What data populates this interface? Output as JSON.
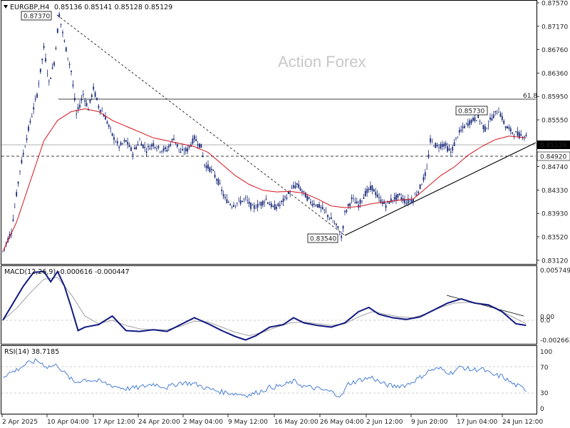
{
  "header": {
    "symbol": "EURGBP,H4",
    "ohlc": "0.85136 0.85141 0.85128 0.85129"
  },
  "watermark": "Action Forex",
  "price_axis": {
    "ticks": [
      "0.87570",
      "0.87170",
      "0.86760",
      "0.86360",
      "0.85950",
      "0.85550",
      "0.85140",
      "0.84740",
      "0.84330",
      "0.83930",
      "0.83520",
      "0.83120"
    ],
    "current_label": "0.85129",
    "level_label": "0.84920",
    "fib_label": "61.8"
  },
  "annotations": {
    "high": "0.87370",
    "low": "0.83540",
    "swing_high": "0.85730"
  },
  "macd_panel": {
    "label": "MACD(12,26,9) -0.000616 -0.000447",
    "ticks": [
      "0.005749",
      "0.00",
      "0.0",
      "-0.002663"
    ]
  },
  "rsi_panel": {
    "label": "RSI(14) 38.7185",
    "ticks": [
      "100",
      "70",
      "30",
      "0"
    ]
  },
  "time_axis": {
    "labels": [
      "2 Apr 2025",
      "10 Apr 04:00",
      "17 Apr 12:00",
      "24 Apr 20:00",
      "2 May 04:00",
      "9 May 12:00",
      "16 May 20:00",
      "26 May 04:00",
      "2 Jun 12:00",
      "9 Jun 20:00",
      "17 Jun 04:00",
      "24 Jun 12:00"
    ]
  },
  "colors": {
    "candle": "#1a2a7a",
    "ma": "#d4141e",
    "macd": "#101880",
    "signal": "#a0a0a0",
    "rsi": "#4a7fd4"
  },
  "chart_data": {
    "type": "line",
    "title": "EURGBP,H4",
    "ylim": [
      0.8312,
      0.8757
    ],
    "price_anchors": [
      [
        0,
        0.833
      ],
      [
        5,
        0.8365
      ],
      [
        10,
        0.847
      ],
      [
        15,
        0.854
      ],
      [
        20,
        0.86
      ],
      [
        24,
        0.868
      ],
      [
        27,
        0.862
      ],
      [
        30,
        0.8655
      ],
      [
        33,
        0.8737
      ],
      [
        36,
        0.869
      ],
      [
        40,
        0.864
      ],
      [
        43,
        0.8565
      ],
      [
        47,
        0.86
      ],
      [
        50,
        0.8575
      ],
      [
        53,
        0.861
      ],
      [
        56,
        0.858
      ],
      [
        60,
        0.856
      ],
      [
        64,
        0.853
      ],
      [
        68,
        0.851
      ],
      [
        72,
        0.852
      ],
      [
        76,
        0.85
      ],
      [
        80,
        0.852
      ],
      [
        84,
        0.8505
      ],
      [
        88,
        0.8515
      ],
      [
        92,
        0.8505
      ],
      [
        96,
        0.8505
      ],
      [
        100,
        0.8525
      ],
      [
        104,
        0.85
      ],
      [
        108,
        0.8505
      ],
      [
        112,
        0.8525
      ],
      [
        116,
        0.851
      ],
      [
        118,
        0.848
      ],
      [
        122,
        0.847
      ],
      [
        126,
        0.845
      ],
      [
        130,
        0.842
      ],
      [
        134,
        0.841
      ],
      [
        138,
        0.8415
      ],
      [
        142,
        0.842
      ],
      [
        146,
        0.8405
      ],
      [
        150,
        0.841
      ],
      [
        154,
        0.842
      ],
      [
        158,
        0.8405
      ],
      [
        162,
        0.841
      ],
      [
        166,
        0.8425
      ],
      [
        170,
        0.844
      ],
      [
        172,
        0.8445
      ],
      [
        176,
        0.843
      ],
      [
        180,
        0.8415
      ],
      [
        184,
        0.841
      ],
      [
        188,
        0.84
      ],
      [
        192,
        0.8385
      ],
      [
        196,
        0.837
      ],
      [
        198,
        0.8354
      ],
      [
        200,
        0.8395
      ],
      [
        204,
        0.842
      ],
      [
        208,
        0.841
      ],
      [
        212,
        0.843
      ],
      [
        216,
        0.844
      ],
      [
        220,
        0.842
      ],
      [
        224,
        0.841
      ],
      [
        228,
        0.842
      ],
      [
        232,
        0.8425
      ],
      [
        236,
        0.8415
      ],
      [
        240,
        0.842
      ],
      [
        244,
        0.844
      ],
      [
        248,
        0.847
      ],
      [
        250,
        0.852
      ],
      [
        254,
        0.851
      ],
      [
        258,
        0.8515
      ],
      [
        262,
        0.85
      ],
      [
        266,
        0.853
      ],
      [
        270,
        0.8545
      ],
      [
        274,
        0.8555
      ],
      [
        278,
        0.856
      ],
      [
        282,
        0.854
      ],
      [
        286,
        0.856
      ],
      [
        290,
        0.8573
      ],
      [
        294,
        0.8545
      ],
      [
        298,
        0.8535
      ],
      [
        302,
        0.853
      ],
      [
        306,
        0.8529
      ]
    ],
    "ma_anchors": [
      [
        0,
        0.833
      ],
      [
        8,
        0.838
      ],
      [
        16,
        0.845
      ],
      [
        24,
        0.852
      ],
      [
        32,
        0.8555
      ],
      [
        40,
        0.857
      ],
      [
        48,
        0.8575
      ],
      [
        56,
        0.857
      ],
      [
        64,
        0.8555
      ],
      [
        72,
        0.8545
      ],
      [
        80,
        0.8535
      ],
      [
        88,
        0.8525
      ],
      [
        96,
        0.852
      ],
      [
        104,
        0.8515
      ],
      [
        112,
        0.851
      ],
      [
        120,
        0.85
      ],
      [
        128,
        0.848
      ],
      [
        136,
        0.846
      ],
      [
        144,
        0.8445
      ],
      [
        152,
        0.8435
      ],
      [
        160,
        0.8432
      ],
      [
        168,
        0.8433
      ],
      [
        176,
        0.843
      ],
      [
        184,
        0.842
      ],
      [
        192,
        0.8408
      ],
      [
        200,
        0.8405
      ],
      [
        208,
        0.8407
      ],
      [
        216,
        0.8412
      ],
      [
        224,
        0.8415
      ],
      [
        232,
        0.8418
      ],
      [
        240,
        0.842
      ],
      [
        248,
        0.844
      ],
      [
        256,
        0.846
      ],
      [
        264,
        0.8475
      ],
      [
        272,
        0.8495
      ],
      [
        280,
        0.851
      ],
      [
        288,
        0.8522
      ],
      [
        296,
        0.8528
      ],
      [
        306,
        0.8525
      ]
    ],
    "macd_anchors": [
      [
        0,
        0.0
      ],
      [
        6,
        0.002
      ],
      [
        12,
        0.004
      ],
      [
        18,
        0.0056
      ],
      [
        24,
        0.0057
      ],
      [
        28,
        0.0045
      ],
      [
        32,
        0.0057
      ],
      [
        36,
        0.004
      ],
      [
        40,
        0.0015
      ],
      [
        44,
        -0.0012
      ],
      [
        48,
        -0.0008
      ],
      [
        56,
        -0.0005
      ],
      [
        64,
        0.0005
      ],
      [
        72,
        -0.0012
      ],
      [
        80,
        -0.0013
      ],
      [
        88,
        -0.0011
      ],
      [
        96,
        -0.0013
      ],
      [
        104,
        -0.0005
      ],
      [
        112,
        0.0003
      ],
      [
        120,
        -0.0004
      ],
      [
        128,
        -0.0012
      ],
      [
        136,
        -0.0019
      ],
      [
        142,
        -0.0023
      ],
      [
        148,
        -0.0018
      ],
      [
        156,
        -0.0008
      ],
      [
        164,
        -0.0005
      ],
      [
        170,
        0.0003
      ],
      [
        176,
        -0.0003
      ],
      [
        184,
        -0.0006
      ],
      [
        192,
        -0.0008
      ],
      [
        200,
        -0.0003
      ],
      [
        208,
        0.001
      ],
      [
        214,
        0.0015
      ],
      [
        220,
        0.0007
      ],
      [
        228,
        0.0003
      ],
      [
        236,
        0.0001
      ],
      [
        244,
        0.0004
      ],
      [
        252,
        0.0012
      ],
      [
        260,
        0.002
      ],
      [
        268,
        0.0025
      ],
      [
        276,
        0.002
      ],
      [
        284,
        0.0018
      ],
      [
        292,
        0.001
      ],
      [
        300,
        -0.0004
      ],
      [
        306,
        -0.0006
      ]
    ],
    "signal_anchors": [
      [
        0,
        0.0
      ],
      [
        8,
        0.0014
      ],
      [
        16,
        0.0032
      ],
      [
        24,
        0.0048
      ],
      [
        32,
        0.005
      ],
      [
        40,
        0.003
      ],
      [
        48,
        0.0005
      ],
      [
        56,
        -0.0004
      ],
      [
        64,
        0.0
      ],
      [
        72,
        -0.0006
      ],
      [
        80,
        -0.001
      ],
      [
        88,
        -0.0011
      ],
      [
        96,
        -0.0011
      ],
      [
        104,
        -0.0007
      ],
      [
        112,
        -0.0001
      ],
      [
        120,
        -0.0002
      ],
      [
        128,
        -0.0008
      ],
      [
        136,
        -0.0014
      ],
      [
        144,
        -0.0018
      ],
      [
        152,
        -0.0014
      ],
      [
        160,
        -0.0008
      ],
      [
        168,
        -0.0003
      ],
      [
        176,
        -0.0002
      ],
      [
        184,
        -0.0004
      ],
      [
        192,
        -0.0006
      ],
      [
        200,
        -0.0004
      ],
      [
        208,
        0.0004
      ],
      [
        216,
        0.001
      ],
      [
        224,
        0.0007
      ],
      [
        232,
        0.0004
      ],
      [
        240,
        0.0003
      ],
      [
        248,
        0.0008
      ],
      [
        256,
        0.0015
      ],
      [
        264,
        0.002
      ],
      [
        272,
        0.0021
      ],
      [
        280,
        0.0019
      ],
      [
        288,
        0.0015
      ],
      [
        296,
        0.0006
      ],
      [
        306,
        -0.0004
      ]
    ],
    "rsi_anchors": [
      [
        0,
        60
      ],
      [
        8,
        70
      ],
      [
        14,
        80
      ],
      [
        20,
        85
      ],
      [
        26,
        75
      ],
      [
        32,
        78
      ],
      [
        36,
        65
      ],
      [
        42,
        50
      ],
      [
        48,
        55
      ],
      [
        56,
        52
      ],
      [
        64,
        45
      ],
      [
        72,
        40
      ],
      [
        80,
        42
      ],
      [
        88,
        48
      ],
      [
        96,
        42
      ],
      [
        104,
        50
      ],
      [
        112,
        48
      ],
      [
        120,
        40
      ],
      [
        128,
        35
      ],
      [
        136,
        32
      ],
      [
        144,
        30
      ],
      [
        150,
        35
      ],
      [
        156,
        42
      ],
      [
        164,
        45
      ],
      [
        170,
        52
      ],
      [
        176,
        44
      ],
      [
        184,
        40
      ],
      [
        192,
        35
      ],
      [
        198,
        28
      ],
      [
        202,
        48
      ],
      [
        210,
        55
      ],
      [
        216,
        58
      ],
      [
        222,
        48
      ],
      [
        228,
        44
      ],
      [
        236,
        46
      ],
      [
        244,
        58
      ],
      [
        250,
        70
      ],
      [
        256,
        72
      ],
      [
        262,
        65
      ],
      [
        268,
        75
      ],
      [
        274,
        70
      ],
      [
        280,
        72
      ],
      [
        286,
        62
      ],
      [
        292,
        60
      ],
      [
        298,
        48
      ],
      [
        306,
        38.7
      ]
    ],
    "levels": {
      "high": 0.8737,
      "low": 0.8354,
      "swing_high": 0.8573,
      "fib_61_8": 0.859,
      "support": 0.8492,
      "current": 0.85129
    }
  }
}
